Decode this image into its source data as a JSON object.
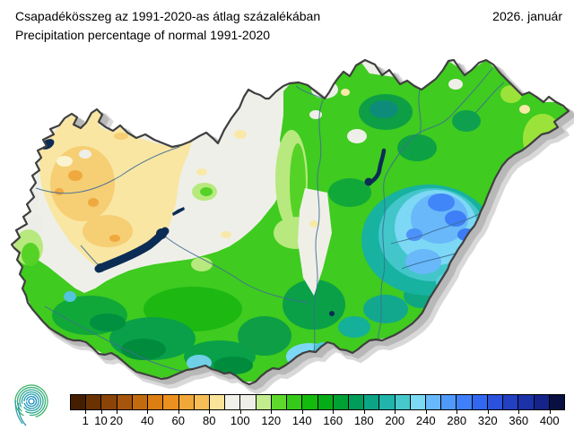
{
  "header": {
    "title_hu": "Csapadékösszeg az 1991-2020-as átlag százalékában",
    "title_en": "Precipitation percentage of normal 1991-2020",
    "date": "2026. január"
  },
  "icons": {
    "logo": "met-service-spiral-logo"
  },
  "legend": {
    "cells": [
      "#451E00",
      "#6A3202",
      "#8A4408",
      "#A6560C",
      "#C06C0E",
      "#DC7E12",
      "#EC9020",
      "#F2A838",
      "#F7BE58",
      "#FAE49A",
      "#F1F1EA",
      "#EFEFE8",
      "#C2EC8E",
      "#5FD82C",
      "#35CA1A",
      "#14BA0C",
      "#06AC16",
      "#00A134",
      "#009C5A",
      "#0BA586",
      "#20B4AA",
      "#47C9CC",
      "#7CDAF5",
      "#68B8FC",
      "#509AFC",
      "#3F80FA",
      "#3268F0",
      "#2A52DC",
      "#2340C2",
      "#1B32A8",
      "#14248A",
      "#071040"
    ],
    "ticks": [
      {
        "label": "1",
        "boundary": 1
      },
      {
        "label": "10",
        "boundary": 2
      },
      {
        "label": "20",
        "boundary": 3
      },
      {
        "label": "40",
        "boundary": 5
      },
      {
        "label": "60",
        "boundary": 7
      },
      {
        "label": "80",
        "boundary": 9
      },
      {
        "label": "100",
        "boundary": 11
      },
      {
        "label": "120",
        "boundary": 13
      },
      {
        "label": "140",
        "boundary": 15
      },
      {
        "label": "160",
        "boundary": 17
      },
      {
        "label": "180",
        "boundary": 19
      },
      {
        "label": "200",
        "boundary": 21
      },
      {
        "label": "240",
        "boundary": 23
      },
      {
        "label": "280",
        "boundary": 25
      },
      {
        "label": "320",
        "boundary": 27
      },
      {
        "label": "360",
        "boundary": 29
      },
      {
        "label": "400",
        "boundary": 31
      }
    ]
  },
  "map": {
    "colors": {
      "base_near_normal": "#EFEFE9",
      "dry_yellow": "#F9E6A2",
      "dry_orange": "#F6CE74",
      "green_mid": "#3FCB1F",
      "green_dark": "#0AA04A",
      "wet_teal": "#17B2A0",
      "wet_sky": "#7CD8F4",
      "wet_blue": "#68B8FA",
      "lake_water": "#0B2C54",
      "river": "#3E6E96",
      "country_border": "#3F3F3F",
      "shadow": "#BDBDBD"
    }
  }
}
